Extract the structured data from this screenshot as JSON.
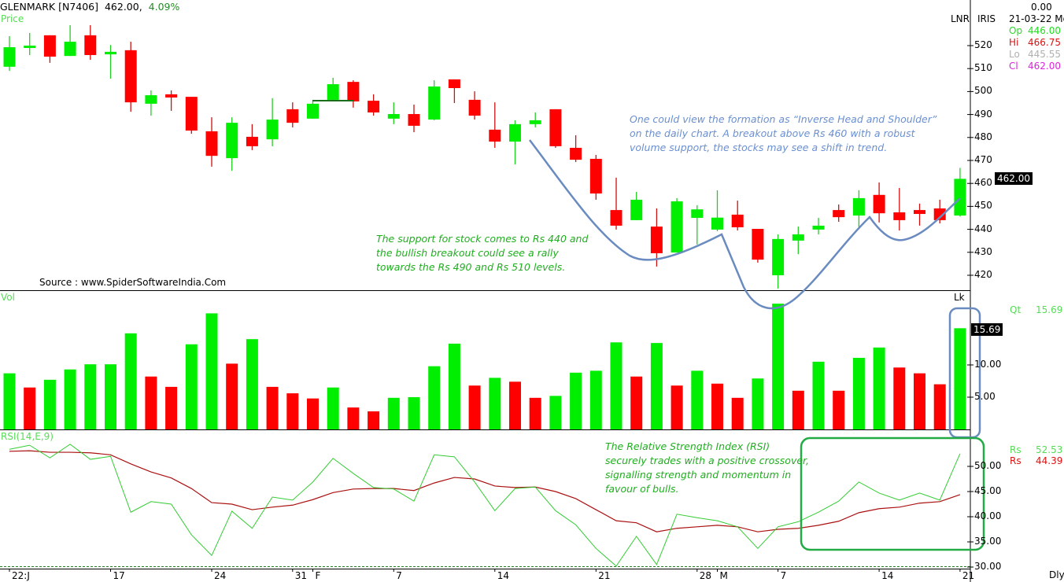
{
  "header": {
    "symbol": "GLENMARK [N7406]",
    "last_price": "462.00,",
    "change_pct": "4.09%",
    "price_pane_label": "Price",
    "volume_pane_label": "Vol",
    "rsi_pane_label": "RSI(14,E,9)",
    "lnr_label": "LNR",
    "iris_label": "IRIS",
    "lk_label": "Lk",
    "period_label": "Dly"
  },
  "info_panel": {
    "top_value": "0.00",
    "date": "21-03-22 Mo",
    "rows": [
      {
        "label": "Op",
        "value": "446.00",
        "color": "#22dd22"
      },
      {
        "label": "Hi",
        "value": "466.75",
        "color": "#dd1111"
      },
      {
        "label": "Lo",
        "value": "445.55",
        "color": "#b0b0b0"
      },
      {
        "label": "Cl",
        "value": "462.00",
        "color": "#dd22dd"
      }
    ],
    "qt": {
      "label": "Qt",
      "value": "15.69"
    },
    "rsi": [
      {
        "label": "Rs",
        "value": "52.53",
        "color": "#22dd22"
      },
      {
        "label": "Rs",
        "value": "44.39",
        "color": "#dd1111"
      }
    ]
  },
  "source_text": "Source : www.SpiderSoftwareIndia.Com",
  "annotations": {
    "pattern_note": [
      "One could view the formation as “Inverse Head and Shoulder”",
      "on the daily chart. A breakout above Rs 460 with a robust",
      "volume support, the stocks may see a shift in trend."
    ],
    "support_note": [
      "The support for stock comes to Rs 440 and",
      "the bullish breakout could see a rally",
      "towards the Rs 490 and Rs 510 levels."
    ],
    "rsi_note": [
      "The Relative Strength Index (RSI)",
      "securely trades with a positive crossover,",
      "signalling strength and momentum in",
      "favour of bulls."
    ]
  },
  "colors": {
    "up": "#00ee00",
    "down": "#ff0000",
    "rsi": "#33cc33",
    "signal": "#aa1111",
    "annotation_blue": "#6a8fd0",
    "annotation_green": "#22aa44"
  },
  "chart_data": {
    "type": "candlestick",
    "title": "GLENMARK [N7406] Daily",
    "x_tick_labels": [
      {
        "index": 0,
        "label": "22:J"
      },
      {
        "index": 5,
        "label": "17"
      },
      {
        "index": 10,
        "label": "24"
      },
      {
        "index": 14,
        "label": "31"
      },
      {
        "index": 15,
        "label": "F"
      },
      {
        "index": 19,
        "label": "7"
      },
      {
        "index": 24,
        "label": "14"
      },
      {
        "index": 29,
        "label": "21"
      },
      {
        "index": 34,
        "label": "28"
      },
      {
        "index": 35,
        "label": "M"
      },
      {
        "index": 38,
        "label": "7"
      },
      {
        "index": 43,
        "label": "14"
      },
      {
        "index": 47,
        "label": "21"
      }
    ],
    "price_axis": {
      "ticks": [
        "520",
        "510",
        "500",
        "490",
        "480",
        "470",
        "460",
        "450",
        "440",
        "430",
        "420"
      ],
      "range": [
        415,
        540
      ],
      "current_label": "462.00"
    },
    "ohlc": [
      [
        510.8,
        524.1,
        509.0,
        519.3
      ],
      [
        519.5,
        525.5,
        515.9,
        520.0
      ],
      [
        524.5,
        524.5,
        512.5,
        515.2
      ],
      [
        515.5,
        528.9,
        515.5,
        521.7
      ],
      [
        524.5,
        528.9,
        513.8,
        515.9
      ],
      [
        516.2,
        520.3,
        505.6,
        517.3
      ],
      [
        518.0,
        521.7,
        491.2,
        495.3
      ],
      [
        494.7,
        500.5,
        489.5,
        498.4
      ],
      [
        498.8,
        500.5,
        491.6,
        497.4
      ],
      [
        497.7,
        497.7,
        481.6,
        483.0
      ],
      [
        482.7,
        488.8,
        467.3,
        472.0
      ],
      [
        471.0,
        488.8,
        465.5,
        486.4
      ],
      [
        480.3,
        485.8,
        474.5,
        476.2
      ],
      [
        479.2,
        497.1,
        476.2,
        487.8
      ],
      [
        492.3,
        495.3,
        484.4,
        486.4
      ],
      [
        488.2,
        496.0,
        488.2,
        494.7
      ],
      [
        496.4,
        506.0,
        496.4,
        503.2
      ],
      [
        504.2,
        504.9,
        493.0,
        495.7
      ],
      [
        496.0,
        498.8,
        489.5,
        490.9
      ],
      [
        488.2,
        495.3,
        485.8,
        490.2
      ],
      [
        490.2,
        494.3,
        482.3,
        485.1
      ],
      [
        487.8,
        504.9,
        487.5,
        502.2
      ],
      [
        505.3,
        505.3,
        495.0,
        501.5
      ],
      [
        496.4,
        500.1,
        487.8,
        489.5
      ],
      [
        483.4,
        495.3,
        475.5,
        478.2
      ],
      [
        478.2,
        487.5,
        468.3,
        485.8
      ],
      [
        485.8,
        490.9,
        484.4,
        487.5
      ],
      [
        492.3,
        492.3,
        475.5,
        476.2
      ],
      [
        475.5,
        481.0,
        469.3,
        470.3
      ],
      [
        470.7,
        472.4,
        452.9,
        455.6
      ],
      [
        448.4,
        462.5,
        439.9,
        441.6
      ],
      [
        444.0,
        456.3,
        444.0,
        452.9
      ],
      [
        441.2,
        449.1,
        423.8,
        429.6
      ],
      [
        429.9,
        453.6,
        429.9,
        452.2
      ],
      [
        445.0,
        450.5,
        433.4,
        448.7
      ],
      [
        439.9,
        457.0,
        439.2,
        445.1
      ],
      [
        446.4,
        452.5,
        439.5,
        440.9
      ],
      [
        440.2,
        440.2,
        425.5,
        426.8
      ],
      [
        420.0,
        437.8,
        414.2,
        435.8
      ],
      [
        435.1,
        441.2,
        429.2,
        437.8
      ],
      [
        439.9,
        445.0,
        437.8,
        441.6
      ],
      [
        448.4,
        450.8,
        443.3,
        445.3
      ],
      [
        446.0,
        457.0,
        440.0,
        453.6
      ],
      [
        455.0,
        460.4,
        443.0,
        447.0
      ],
      [
        447.4,
        458.0,
        439.5,
        444.0
      ],
      [
        448.4,
        451.2,
        441.6,
        446.7
      ],
      [
        449.1,
        452.9,
        442.6,
        444.0
      ],
      [
        446.0,
        466.75,
        445.55,
        462.0
      ]
    ],
    "volume_axis": {
      "ticks": [
        "10.00",
        "5.00"
      ],
      "unit": "Lk",
      "current_label": "15.69"
    },
    "volume": [
      8.7,
      6.5,
      7.7,
      9.3,
      10.1,
      10.1,
      14.9,
      8.2,
      6.6,
      13.2,
      18.0,
      10.2,
      14.0,
      6.6,
      5.6,
      4.8,
      6.5,
      3.4,
      2.8,
      4.9,
      5.0,
      9.8,
      13.3,
      6.8,
      8.0,
      7.4,
      4.9,
      5.2,
      8.8,
      9.1,
      13.5,
      8.2,
      13.4,
      6.8,
      9.1,
      7.1,
      4.9,
      7.9,
      19.5,
      6.0,
      10.5,
      6.0,
      11.1,
      12.7,
      9.6,
      8.7,
      7.0,
      15.69
    ],
    "volume_up": [
      1,
      0,
      1,
      1,
      1,
      1,
      1,
      0,
      0,
      1,
      1,
      0,
      1,
      0,
      0,
      0,
      1,
      0,
      0,
      1,
      1,
      1,
      1,
      0,
      1,
      0,
      0,
      1,
      1,
      1,
      1,
      0,
      1,
      0,
      1,
      0,
      0,
      1,
      1,
      0,
      1,
      0,
      1,
      1,
      0,
      0,
      0,
      1
    ],
    "rsi_axis": {
      "ticks": [
        "50.00",
        "45.00",
        "40.00",
        "35.00",
        "30.00"
      ],
      "range": [
        30,
        55
      ]
    },
    "rsi": [
      53.4,
      54.2,
      51.7,
      54.4,
      51.4,
      52.0,
      40.9,
      43.0,
      42.5,
      36.4,
      32.3,
      41.1,
      37.7,
      43.9,
      43.3,
      46.9,
      51.6,
      48.6,
      45.8,
      45.5,
      43.1,
      52.3,
      51.9,
      46.9,
      41.2,
      45.6,
      45.9,
      41.2,
      38.4,
      33.7,
      30.2,
      36.1,
      30.5,
      40.5,
      39.8,
      39.2,
      38.0,
      33.7,
      38.0,
      39.0,
      40.9,
      43.1,
      46.9,
      44.7,
      43.3,
      44.7,
      43.3,
      52.53
    ],
    "rsi_signal": [
      53.0,
      53.1,
      52.8,
      52.8,
      52.7,
      52.3,
      50.5,
      48.9,
      47.7,
      45.6,
      42.8,
      42.5,
      41.4,
      41.9,
      42.3,
      43.4,
      44.8,
      45.5,
      45.6,
      45.6,
      45.2,
      46.7,
      47.8,
      47.5,
      46.1,
      45.8,
      45.9,
      45.0,
      43.6,
      41.4,
      39.2,
      38.8,
      37.0,
      37.7,
      38.0,
      38.3,
      38.0,
      37.0,
      37.5,
      37.7,
      38.3,
      39.1,
      40.8,
      41.6,
      41.9,
      42.7,
      43.0,
      44.39
    ]
  }
}
